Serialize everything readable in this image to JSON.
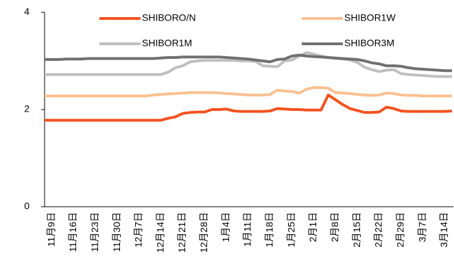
{
  "chart_data": {
    "type": "line",
    "categories": [
      null,
      "11月9日",
      null,
      null,
      "11月16日",
      null,
      null,
      "11月23日",
      null,
      null,
      "11月30日",
      null,
      null,
      "12月7日",
      null,
      null,
      "12月14日",
      null,
      null,
      "12月21日",
      null,
      null,
      "12月28日",
      null,
      null,
      "1月4日",
      null,
      null,
      "1月11日",
      null,
      null,
      "1月18日",
      null,
      null,
      "1月25日",
      null,
      null,
      "2月1日",
      null,
      null,
      "2月8日",
      null,
      null,
      "2月15日",
      null,
      null,
      "2月22日",
      null,
      null,
      "2月29日",
      null,
      null,
      "3月7日",
      null,
      null,
      "3月14日",
      null
    ],
    "series": [
      {
        "name": "SHIBORO/N",
        "color": "#f4511e",
        "values": [
          1.78,
          1.78,
          1.78,
          1.78,
          1.78,
          1.78,
          1.78,
          1.78,
          1.78,
          1.78,
          1.78,
          1.78,
          1.78,
          1.78,
          1.78,
          1.78,
          1.78,
          1.82,
          1.85,
          1.92,
          1.94,
          1.95,
          1.95,
          2.0,
          2.0,
          2.01,
          1.97,
          1.96,
          1.96,
          1.96,
          1.96,
          1.97,
          2.02,
          2.01,
          2.0,
          2.0,
          1.99,
          1.99,
          1.99,
          2.3,
          2.2,
          2.1,
          2.02,
          1.98,
          1.94,
          1.94,
          1.95,
          2.05,
          2.02,
          1.97,
          1.96,
          1.96,
          1.96,
          1.96,
          1.96,
          1.96,
          1.97
        ]
      },
      {
        "name": "SHIBOR1W",
        "color": "#fac090",
        "values": [
          2.28,
          2.28,
          2.28,
          2.28,
          2.28,
          2.28,
          2.28,
          2.28,
          2.28,
          2.28,
          2.28,
          2.28,
          2.28,
          2.28,
          2.28,
          2.3,
          2.31,
          2.32,
          2.33,
          2.34,
          2.35,
          2.35,
          2.35,
          2.35,
          2.34,
          2.33,
          2.32,
          2.31,
          2.3,
          2.3,
          2.3,
          2.31,
          2.4,
          2.38,
          2.37,
          2.34,
          2.42,
          2.45,
          2.45,
          2.44,
          2.35,
          2.34,
          2.33,
          2.31,
          2.3,
          2.29,
          2.3,
          2.34,
          2.33,
          2.3,
          2.29,
          2.29,
          2.28,
          2.28,
          2.28,
          2.28,
          2.28
        ]
      },
      {
        "name": "SHIBOR1M",
        "color": "#bfbfbf",
        "values": [
          2.72,
          2.72,
          2.72,
          2.72,
          2.72,
          2.72,
          2.72,
          2.72,
          2.72,
          2.72,
          2.72,
          2.72,
          2.72,
          2.72,
          2.72,
          2.72,
          2.72,
          2.77,
          2.86,
          2.9,
          2.98,
          3.0,
          3.01,
          3.01,
          3.01,
          3.01,
          3.01,
          3.0,
          3.0,
          2.99,
          2.9,
          2.89,
          2.88,
          3.0,
          3.02,
          3.1,
          3.17,
          3.14,
          3.1,
          3.07,
          3.05,
          3.04,
          3.02,
          2.97,
          2.87,
          2.82,
          2.78,
          2.81,
          2.82,
          2.74,
          2.72,
          2.71,
          2.7,
          2.69,
          2.68,
          2.68,
          2.68
        ]
      },
      {
        "name": "SHIBOR3M",
        "color": "#6f6f6f",
        "values": [
          3.03,
          3.03,
          3.03,
          3.04,
          3.04,
          3.04,
          3.05,
          3.05,
          3.05,
          3.05,
          3.05,
          3.05,
          3.05,
          3.05,
          3.05,
          3.05,
          3.06,
          3.07,
          3.07,
          3.08,
          3.08,
          3.08,
          3.08,
          3.08,
          3.08,
          3.07,
          3.06,
          3.05,
          3.04,
          3.02,
          3.0,
          2.98,
          3.03,
          3.04,
          3.1,
          3.12,
          3.1,
          3.09,
          3.08,
          3.07,
          3.06,
          3.05,
          3.04,
          3.03,
          3.0,
          2.96,
          2.94,
          2.9,
          2.9,
          2.89,
          2.86,
          2.84,
          2.83,
          2.82,
          2.81,
          2.8,
          2.8
        ]
      }
    ],
    "ylim": [
      0,
      4
    ],
    "yticks": [
      0,
      2,
      4
    ],
    "grid": false
  }
}
